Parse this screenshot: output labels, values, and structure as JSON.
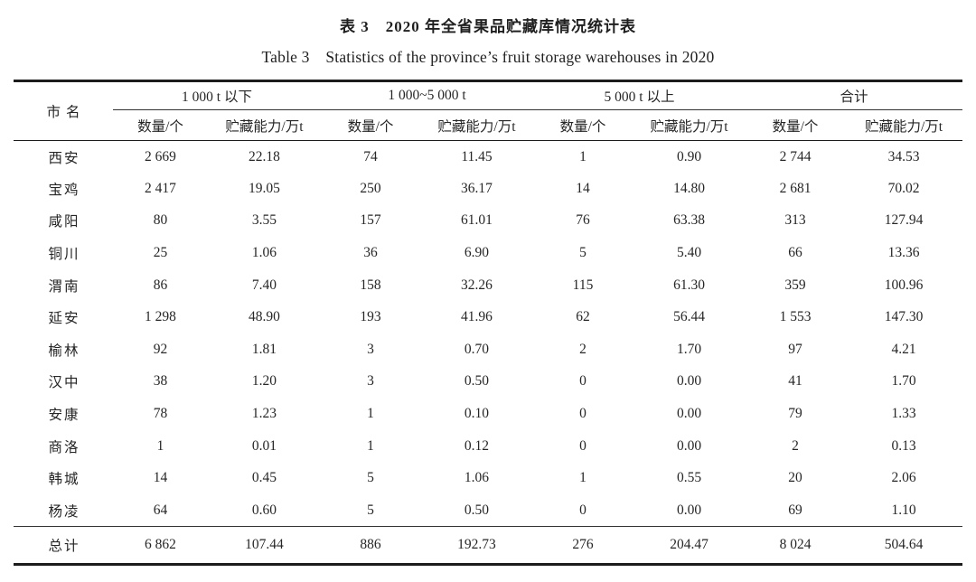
{
  "caption": {
    "zh": "表 3　2020 年全省果品贮藏库情况统计表",
    "en": "Table 3　Statistics of the province’s fruit storage warehouses in 2020"
  },
  "table": {
    "city_header": "市名",
    "groups": [
      {
        "label": "1 000 t 以下"
      },
      {
        "label": "1 000~5 000 t"
      },
      {
        "label": "5 000 t 以上"
      },
      {
        "label": "合计"
      }
    ],
    "sub_headers": [
      "数量/个",
      "贮藏能力/万t"
    ],
    "rows": [
      {
        "city": "西安",
        "values": [
          "2 669",
          "22.18",
          "74",
          "11.45",
          "1",
          "0.90",
          "2 744",
          "34.53"
        ]
      },
      {
        "city": "宝鸡",
        "values": [
          "2 417",
          "19.05",
          "250",
          "36.17",
          "14",
          "14.80",
          "2 681",
          "70.02"
        ]
      },
      {
        "city": "咸阳",
        "values": [
          "80",
          "3.55",
          "157",
          "61.01",
          "76",
          "63.38",
          "313",
          "127.94"
        ]
      },
      {
        "city": "铜川",
        "values": [
          "25",
          "1.06",
          "36",
          "6.90",
          "5",
          "5.40",
          "66",
          "13.36"
        ]
      },
      {
        "city": "渭南",
        "values": [
          "86",
          "7.40",
          "158",
          "32.26",
          "115",
          "61.30",
          "359",
          "100.96"
        ]
      },
      {
        "city": "延安",
        "values": [
          "1 298",
          "48.90",
          "193",
          "41.96",
          "62",
          "56.44",
          "1 553",
          "147.30"
        ]
      },
      {
        "city": "榆林",
        "values": [
          "92",
          "1.81",
          "3",
          "0.70",
          "2",
          "1.70",
          "97",
          "4.21"
        ]
      },
      {
        "city": "汉中",
        "values": [
          "38",
          "1.20",
          "3",
          "0.50",
          "0",
          "0.00",
          "41",
          "1.70"
        ]
      },
      {
        "city": "安康",
        "values": [
          "78",
          "1.23",
          "1",
          "0.10",
          "0",
          "0.00",
          "79",
          "1.33"
        ]
      },
      {
        "city": "商洛",
        "values": [
          "1",
          "0.01",
          "1",
          "0.12",
          "0",
          "0.00",
          "2",
          "0.13"
        ]
      },
      {
        "city": "韩城",
        "values": [
          "14",
          "0.45",
          "5",
          "1.06",
          "1",
          "0.55",
          "20",
          "2.06"
        ]
      },
      {
        "city": "杨凌",
        "values": [
          "64",
          "0.60",
          "5",
          "0.50",
          "0",
          "0.00",
          "69",
          "1.10"
        ]
      }
    ],
    "total_row": {
      "city": "总计",
      "values": [
        "6 862",
        "107.44",
        "886",
        "192.73",
        "276",
        "204.47",
        "8 024",
        "504.64"
      ]
    }
  }
}
